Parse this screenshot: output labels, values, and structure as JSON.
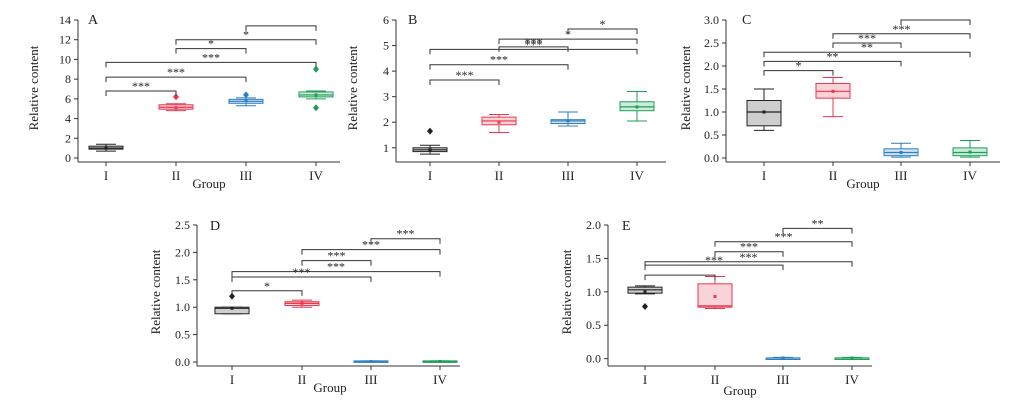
{
  "colors": {
    "I": "#222222",
    "II": "#e8384f",
    "III": "#2f7fc1",
    "IV": "#1f9e5a",
    "axis": "#333333"
  },
  "chart_data": [
    {
      "id": "A",
      "type": "box",
      "panel_label": "A",
      "xlabel": "Group",
      "ylabel": "Relative content",
      "categories": [
        "I",
        "II",
        "III",
        "IV"
      ],
      "ylim": [
        0,
        14
      ],
      "yticks": [
        0,
        2,
        4,
        6,
        8,
        10,
        12,
        14
      ],
      "boxes": [
        {
          "group": "I",
          "min": 0.7,
          "q1": 0.9,
          "median": 1.0,
          "q3": 1.2,
          "max": 1.4,
          "mean": 1.0,
          "outliers": []
        },
        {
          "group": "II",
          "min": 4.8,
          "q1": 4.95,
          "median": 5.15,
          "q3": 5.4,
          "max": 5.5,
          "mean": 5.1,
          "outliers": [
            6.2
          ]
        },
        {
          "group": "III",
          "min": 5.3,
          "q1": 5.55,
          "median": 5.75,
          "q3": 5.95,
          "max": 6.1,
          "mean": 5.8,
          "outliers": [
            6.4
          ]
        },
        {
          "group": "IV",
          "min": 6.0,
          "q1": 6.2,
          "median": 6.4,
          "q3": 6.7,
          "max": 6.8,
          "mean": 6.4,
          "outliers": [
            9.0,
            5.1
          ]
        }
      ],
      "brackets": [
        {
          "from": "I",
          "to": "II",
          "y": 6.8,
          "label": "***"
        },
        {
          "from": "I",
          "to": "III",
          "y": 8.2,
          "label": "***"
        },
        {
          "from": "I",
          "to": "IV",
          "y": 9.7,
          "label": "***"
        },
        {
          "from": "II",
          "to": "III",
          "y": 11.1,
          "label": "*"
        },
        {
          "from": "II",
          "to": "IV",
          "y": 12.0,
          "label": "*"
        },
        {
          "from": "III",
          "to": "IV",
          "y": 13.4,
          "label": ""
        }
      ]
    },
    {
      "id": "B",
      "type": "box",
      "panel_label": "B",
      "xlabel": "",
      "ylabel": "Relative content",
      "categories": [
        "I",
        "II",
        "III",
        "IV"
      ],
      "ylim": [
        0.6,
        6.0
      ],
      "yticks": [
        1,
        2,
        3,
        4,
        5,
        6
      ],
      "boxes": [
        {
          "group": "I",
          "min": 0.75,
          "q1": 0.85,
          "median": 0.92,
          "q3": 1.0,
          "max": 1.1,
          "mean": 0.92,
          "outliers": [
            1.65
          ]
        },
        {
          "group": "II",
          "min": 1.6,
          "q1": 1.9,
          "median": 2.05,
          "q3": 2.2,
          "max": 2.3,
          "mean": 2.0,
          "outliers": []
        },
        {
          "group": "III",
          "min": 1.85,
          "q1": 1.95,
          "median": 2.05,
          "q3": 2.1,
          "max": 2.4,
          "mean": 2.05,
          "outliers": []
        },
        {
          "group": "IV",
          "min": 2.05,
          "q1": 2.45,
          "median": 2.6,
          "q3": 2.8,
          "max": 3.2,
          "mean": 2.6,
          "outliers": []
        }
      ],
      "brackets": [
        {
          "from": "I",
          "to": "II",
          "y": 3.65,
          "label": "***"
        },
        {
          "from": "I",
          "to": "III",
          "y": 4.25,
          "label": "***"
        },
        {
          "from": "I",
          "to": "IV",
          "y": 4.85,
          "label": "***"
        },
        {
          "from": "II",
          "to": "III",
          "y": 4.95,
          "label": "***"
        },
        {
          "from": "II",
          "to": "IV",
          "y": 5.25,
          "label": "*"
        },
        {
          "from": "III",
          "to": "IV",
          "y": 5.65,
          "label": "*"
        }
      ]
    },
    {
      "id": "C",
      "type": "box",
      "panel_label": "C",
      "xlabel": "Group",
      "ylabel": "Relative content",
      "categories": [
        "I",
        "II",
        "III",
        "IV"
      ],
      "ylim": [
        0,
        3.0
      ],
      "yticks": [
        0.0,
        0.5,
        1.0,
        1.5,
        2.0,
        2.5,
        3.0
      ],
      "boxes": [
        {
          "group": "I",
          "min": 0.6,
          "q1": 0.7,
          "median": 1.0,
          "q3": 1.25,
          "max": 1.5,
          "mean": 1.0,
          "outliers": []
        },
        {
          "group": "II",
          "min": 0.9,
          "q1": 1.3,
          "median": 1.45,
          "q3": 1.62,
          "max": 1.75,
          "mean": 1.45,
          "outliers": []
        },
        {
          "group": "III",
          "min": 0.02,
          "q1": 0.05,
          "median": 0.12,
          "q3": 0.2,
          "max": 0.32,
          "mean": 0.12,
          "outliers": []
        },
        {
          "group": "IV",
          "min": 0.02,
          "q1": 0.05,
          "median": 0.12,
          "q3": 0.22,
          "max": 0.38,
          "mean": 0.13,
          "outliers": []
        }
      ],
      "brackets": [
        {
          "from": "I",
          "to": "II",
          "y": 1.9,
          "label": "*"
        },
        {
          "from": "I",
          "to": "III",
          "y": 2.1,
          "label": "**"
        },
        {
          "from": "I",
          "to": "IV",
          "y": 2.3,
          "label": "**"
        },
        {
          "from": "II",
          "to": "III",
          "y": 2.5,
          "label": "***"
        },
        {
          "from": "II",
          "to": "IV",
          "y": 2.7,
          "label": "***"
        },
        {
          "from": "III",
          "to": "IV",
          "y": 3.0,
          "label": ""
        }
      ]
    },
    {
      "id": "D",
      "type": "box",
      "panel_label": "D",
      "xlabel": "Group",
      "ylabel": "Relative content",
      "categories": [
        "I",
        "II",
        "III",
        "IV"
      ],
      "ylim": [
        0,
        2.5
      ],
      "yticks": [
        0.0,
        0.5,
        1.0,
        1.5,
        2.0,
        2.5
      ],
      "boxes": [
        {
          "group": "I",
          "min": 0.88,
          "q1": 0.88,
          "median": 0.98,
          "q3": 1.0,
          "max": 1.0,
          "mean": 0.98,
          "outliers": [
            1.2
          ]
        },
        {
          "group": "II",
          "min": 1.0,
          "q1": 1.03,
          "median": 1.07,
          "q3": 1.1,
          "max": 1.13,
          "mean": 1.07,
          "outliers": []
        },
        {
          "group": "III",
          "min": 0.0,
          "q1": 0.0,
          "median": 0.01,
          "q3": 0.02,
          "max": 0.02,
          "mean": 0.01,
          "outliers": []
        },
        {
          "group": "IV",
          "min": 0.0,
          "q1": 0.0,
          "median": 0.01,
          "q3": 0.02,
          "max": 0.02,
          "mean": 0.01,
          "outliers": []
        }
      ],
      "brackets": [
        {
          "from": "I",
          "to": "II",
          "y": 1.3,
          "label": "*"
        },
        {
          "from": "I",
          "to": "III",
          "y": 1.55,
          "label": "***"
        },
        {
          "from": "I",
          "to": "IV",
          "y": 1.65,
          "label": "***"
        },
        {
          "from": "II",
          "to": "III",
          "y": 1.85,
          "label": "***"
        },
        {
          "from": "II",
          "to": "IV",
          "y": 2.05,
          "label": "***"
        },
        {
          "from": "III",
          "to": "IV",
          "y": 2.25,
          "label": "***"
        }
      ]
    },
    {
      "id": "E",
      "type": "box",
      "panel_label": "E",
      "xlabel": "Group",
      "ylabel": "Relative content",
      "categories": [
        "I",
        "II",
        "III",
        "IV"
      ],
      "ylim": [
        -0.05,
        2.0
      ],
      "yticks": [
        0.0,
        0.5,
        1.0,
        1.5,
        2.0
      ],
      "boxes": [
        {
          "group": "I",
          "min": 0.97,
          "q1": 0.98,
          "median": 1.03,
          "q3": 1.07,
          "max": 1.09,
          "mean": 1.0,
          "outliers": [
            0.78
          ]
        },
        {
          "group": "II",
          "min": 0.75,
          "q1": 0.77,
          "median": 0.79,
          "q3": 1.12,
          "max": 1.23,
          "mean": 0.93,
          "outliers": []
        },
        {
          "group": "III",
          "min": 0.0,
          "q1": 0.0,
          "median": 0.01,
          "q3": 0.01,
          "max": 0.02,
          "mean": 0.01,
          "outliers": []
        },
        {
          "group": "IV",
          "min": 0.0,
          "q1": 0.0,
          "median": 0.01,
          "q3": 0.01,
          "max": 0.02,
          "mean": 0.01,
          "outliers": []
        }
      ],
      "brackets": [
        {
          "from": "I",
          "to": "II",
          "y": 1.25,
          "label": ""
        },
        {
          "from": "I",
          "to": "III",
          "y": 1.4,
          "label": "***"
        },
        {
          "from": "I",
          "to": "IV",
          "y": 1.45,
          "label": "***"
        },
        {
          "from": "II",
          "to": "III",
          "y": 1.6,
          "label": "***"
        },
        {
          "from": "II",
          "to": "IV",
          "y": 1.75,
          "label": "***"
        },
        {
          "from": "III",
          "to": "IV",
          "y": 1.95,
          "label": "**"
        }
      ]
    }
  ]
}
